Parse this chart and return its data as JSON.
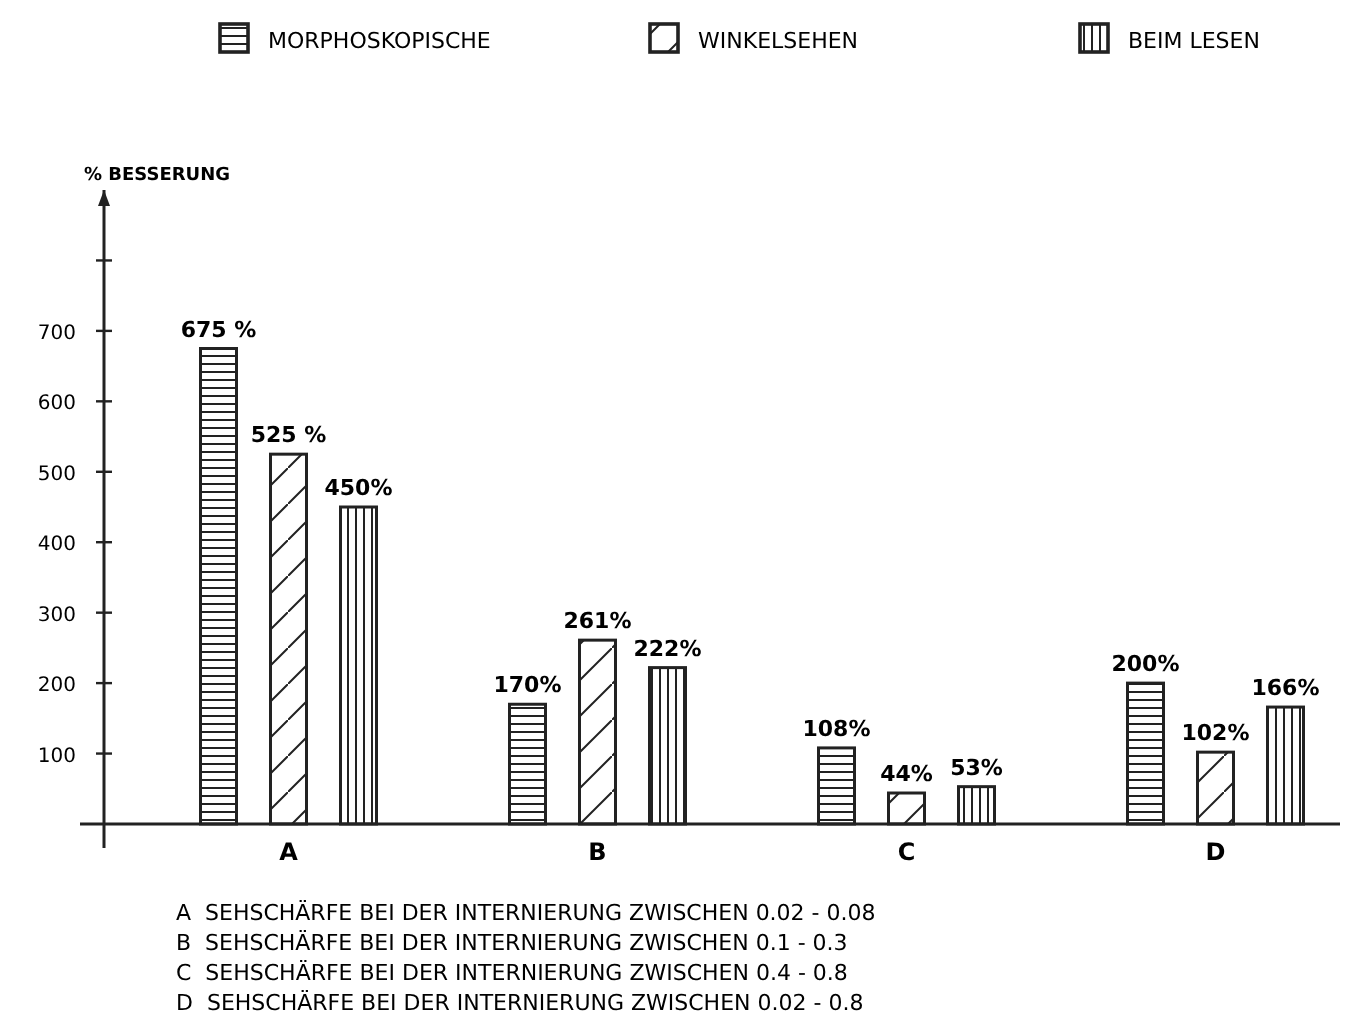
{
  "chart_data": {
    "type": "bar",
    "ylabel": "% BESSERUNG",
    "categories": [
      "A",
      "B",
      "C",
      "D"
    ],
    "series": [
      {
        "name": "MORPHOSKOPISCHE",
        "color": "#222222",
        "values": [
          675,
          170,
          108,
          200
        ],
        "value_labels": [
          "675 %",
          "170%",
          "108%",
          "200%"
        ]
      },
      {
        "name": "WINKELSEHEN",
        "color": "#222222",
        "values": [
          525,
          261,
          44,
          102
        ],
        "value_labels": [
          "525 %",
          "261%",
          "44%",
          "102%"
        ]
      },
      {
        "name": "BEIM  LESEN",
        "color": "#222222",
        "values": [
          450,
          222,
          53,
          166
        ],
        "value_labels": [
          "450%",
          "222%",
          "53%",
          "166%"
        ]
      }
    ],
    "ylim": [
      0,
      900
    ],
    "yticks": [
      100,
      200,
      300,
      400,
      500,
      600,
      700,
      {
        "value": 800,
        "label": null
      }
    ],
    "grid": false,
    "legend": "top",
    "annotations": [
      "A  SEHSCHÄRFE BEI DER INTERNIERUNG ZWISCHEN 0.02 - 0.08",
      "B  SEHSCHÄRFE BEI DER INTERNIERUNG ZWISCHEN 0.1 - 0.3",
      "C  SEHSCHÄRFE BEI DER INTERNIERUNG ZWISCHEN 0.4 - 0.8",
      "D  SEHSCHÄRFE BEI DER INTERNIERUNG ZWISCHEN 0.02 - 0.8"
    ]
  }
}
